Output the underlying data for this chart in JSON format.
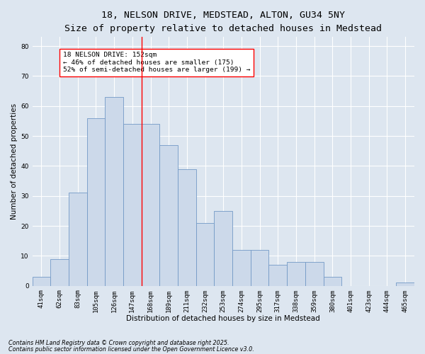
{
  "title_line1": "18, NELSON DRIVE, MEDSTEAD, ALTON, GU34 5NY",
  "title_line2": "Size of property relative to detached houses in Medstead",
  "xlabel": "Distribution of detached houses by size in Medstead",
  "ylabel": "Number of detached properties",
  "bar_labels": [
    "41sqm",
    "62sqm",
    "83sqm",
    "105sqm",
    "126sqm",
    "147sqm",
    "168sqm",
    "189sqm",
    "211sqm",
    "232sqm",
    "253sqm",
    "274sqm",
    "295sqm",
    "317sqm",
    "338sqm",
    "359sqm",
    "380sqm",
    "401sqm",
    "423sqm",
    "444sqm",
    "465sqm"
  ],
  "bar_values": [
    3,
    9,
    31,
    56,
    63,
    54,
    54,
    47,
    39,
    21,
    25,
    12,
    12,
    7,
    8,
    8,
    3,
    0,
    0,
    0,
    1
  ],
  "bar_color": "#ccd9ea",
  "bar_edge_color": "#7399c6",
  "vline_color": "red",
  "vline_x": 5.5,
  "annotation_title": "18 NELSON DRIVE: 152sqm",
  "annotation_line1": "← 46% of detached houses are smaller (175)",
  "annotation_line2": "52% of semi-detached houses are larger (199) →",
  "annotation_box_facecolor": "white",
  "annotation_box_edgecolor": "red",
  "ylim": [
    0,
    83
  ],
  "yticks": [
    0,
    10,
    20,
    30,
    40,
    50,
    60,
    70,
    80
  ],
  "footnote1": "Contains HM Land Registry data © Crown copyright and database right 2025.",
  "footnote2": "Contains public sector information licensed under the Open Government Licence v3.0.",
  "background_color": "#dde6f0",
  "plot_background_color": "#dde6f0",
  "grid_color": "white",
  "title_fontsize": 9.5,
  "subtitle_fontsize": 8,
  "axis_label_fontsize": 7.5,
  "tick_fontsize": 6.5,
  "annotation_fontsize": 6.8,
  "footnote_fontsize": 5.8
}
